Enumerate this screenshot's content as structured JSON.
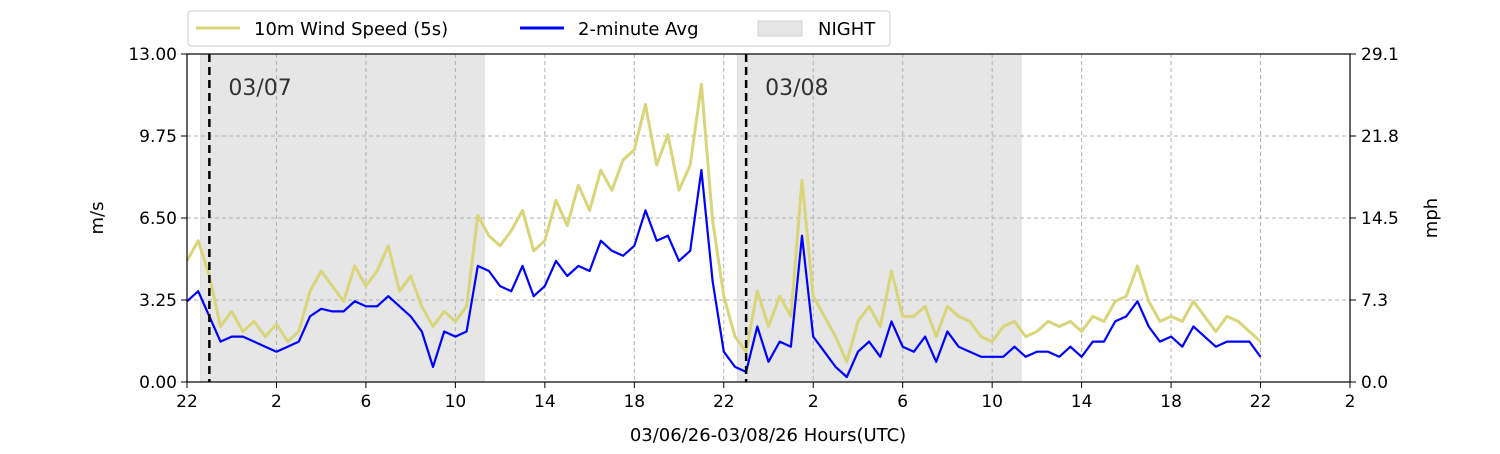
{
  "chart_data": {
    "type": "line",
    "xlabel": "03/06/26-03/08/26  Hours(UTC)",
    "ylabel_left": "m/s",
    "ylabel_right": "mph",
    "ylim": [
      0,
      13
    ],
    "yticks_left": [
      "0.00",
      "3.25",
      "6.50",
      "9.75",
      "13.00"
    ],
    "yticks_right": [
      "0.0",
      "7.3",
      "14.5",
      "21.8",
      "29.1"
    ],
    "xlim_hours": [
      0,
      52
    ],
    "xticks": [
      "22",
      "2",
      "6",
      "10",
      "14",
      "18",
      "22",
      "2",
      "6",
      "10",
      "14",
      "18",
      "22",
      "2"
    ],
    "grid": true,
    "legend_position": "top-left",
    "legend": {
      "wind_speed": "10m Wind Speed (5s)",
      "avg": "2-minute Avg",
      "night": "NIGHT"
    },
    "colors": {
      "wind_speed": "#d8d57a",
      "avg": "#0000ff",
      "night": "#e6e6e6",
      "grid": "#b0b0b0",
      "day_divider": "#000000"
    },
    "night_periods_hours": [
      [
        0.6,
        13.3
      ],
      [
        24.6,
        37.3
      ]
    ],
    "day_markers": [
      {
        "hour": 1.0,
        "label": "03/07"
      },
      {
        "hour": 25.0,
        "label": "03/08"
      }
    ],
    "series": [
      {
        "name": "10m Wind Speed (5s)",
        "x_hours": [
          0,
          0.5,
          1.0,
          1.5,
          2.0,
          2.5,
          3.0,
          3.5,
          4.0,
          4.5,
          5.0,
          5.5,
          6.0,
          6.5,
          7.0,
          7.5,
          8.0,
          8.5,
          9.0,
          9.5,
          10.0,
          10.5,
          11.0,
          11.5,
          12.0,
          12.5,
          13.0,
          13.5,
          14.0,
          14.5,
          15.0,
          15.5,
          16.0,
          16.5,
          17.0,
          17.5,
          18.0,
          18.5,
          19.0,
          19.5,
          20.0,
          20.5,
          21.0,
          21.5,
          22.0,
          22.5,
          23.0,
          23.5,
          24.0,
          24.5,
          25.0,
          25.5,
          26.0,
          26.5,
          27.0,
          27.5,
          28.0,
          28.5,
          29.0,
          29.5,
          30.0,
          30.5,
          31.0,
          31.5,
          32.0,
          32.5,
          33.0,
          33.5,
          34.0,
          34.5,
          35.0,
          35.5,
          36.0,
          36.5,
          37.0,
          37.5,
          38.0,
          38.5,
          39.0,
          39.5,
          40.0,
          40.5,
          41.0,
          41.5,
          42.0,
          42.5,
          43.0,
          43.5,
          44.0,
          44.5,
          45.0,
          45.5,
          46.0,
          46.5,
          47.0,
          47.5,
          48.0
        ],
        "values": [
          4.8,
          5.6,
          4.2,
          2.2,
          2.8,
          2.0,
          2.4,
          1.8,
          2.3,
          1.6,
          2.0,
          3.6,
          4.4,
          3.8,
          3.2,
          4.6,
          3.8,
          4.4,
          5.4,
          3.6,
          4.2,
          3.0,
          2.2,
          2.8,
          2.4,
          3.0,
          6.6,
          5.8,
          5.4,
          6.0,
          6.8,
          5.2,
          5.6,
          7.2,
          6.2,
          7.8,
          6.8,
          8.4,
          7.6,
          8.8,
          9.2,
          11.0,
          8.6,
          9.8,
          7.6,
          8.6,
          11.8,
          6.4,
          3.4,
          1.8,
          1.2,
          3.6,
          2.2,
          3.4,
          2.6,
          8.0,
          3.4,
          2.6,
          1.8,
          0.8,
          2.4,
          3.0,
          2.2,
          4.4,
          2.6,
          2.6,
          3.0,
          1.8,
          3.0,
          2.6,
          2.4,
          1.8,
          1.6,
          2.2,
          2.4,
          1.8,
          2.0,
          2.4,
          2.2,
          2.4,
          2.0,
          2.6,
          2.4,
          3.2,
          3.4,
          4.6,
          3.2,
          2.4,
          2.6,
          2.4,
          3.2,
          2.6,
          2.0,
          2.6,
          2.4,
          2.0,
          1.6
        ]
      },
      {
        "name": "2-minute Avg",
        "x_hours": [
          0,
          0.5,
          1.0,
          1.5,
          2.0,
          2.5,
          3.0,
          3.5,
          4.0,
          4.5,
          5.0,
          5.5,
          6.0,
          6.5,
          7.0,
          7.5,
          8.0,
          8.5,
          9.0,
          9.5,
          10.0,
          10.5,
          11.0,
          11.5,
          12.0,
          12.5,
          13.0,
          13.5,
          14.0,
          14.5,
          15.0,
          15.5,
          16.0,
          16.5,
          17.0,
          17.5,
          18.0,
          18.5,
          19.0,
          19.5,
          20.0,
          20.5,
          21.0,
          21.5,
          22.0,
          22.5,
          23.0,
          23.5,
          24.0,
          24.5,
          25.0,
          25.5,
          26.0,
          26.5,
          27.0,
          27.5,
          28.0,
          28.5,
          29.0,
          29.5,
          30.0,
          30.5,
          31.0,
          31.5,
          32.0,
          32.5,
          33.0,
          33.5,
          34.0,
          34.5,
          35.0,
          35.5,
          36.0,
          36.5,
          37.0,
          37.5,
          38.0,
          38.5,
          39.0,
          39.5,
          40.0,
          40.5,
          41.0,
          41.5,
          42.0,
          42.5,
          43.0,
          43.5,
          44.0,
          44.5,
          45.0,
          45.5,
          46.0,
          46.5,
          47.0,
          47.5,
          48.0
        ],
        "values": [
          3.2,
          3.6,
          2.6,
          1.6,
          1.8,
          1.8,
          1.6,
          1.4,
          1.2,
          1.4,
          1.6,
          2.6,
          2.9,
          2.8,
          2.8,
          3.2,
          3.0,
          3.0,
          3.4,
          3.0,
          2.6,
          2.0,
          0.6,
          2.0,
          1.8,
          2.0,
          4.6,
          4.4,
          3.8,
          3.6,
          4.6,
          3.4,
          3.8,
          4.8,
          4.2,
          4.6,
          4.4,
          5.6,
          5.2,
          5.0,
          5.4,
          6.8,
          5.6,
          5.8,
          4.8,
          5.2,
          8.4,
          4.0,
          1.2,
          0.6,
          0.4,
          2.2,
          0.8,
          1.6,
          1.4,
          5.8,
          1.8,
          1.2,
          0.6,
          0.2,
          1.2,
          1.6,
          1.0,
          2.4,
          1.4,
          1.2,
          1.8,
          0.8,
          2.0,
          1.4,
          1.2,
          1.0,
          1.0,
          1.0,
          1.4,
          1.0,
          1.2,
          1.2,
          1.0,
          1.4,
          1.0,
          1.6,
          1.6,
          2.4,
          2.6,
          3.2,
          2.2,
          1.6,
          1.8,
          1.4,
          2.2,
          1.8,
          1.4,
          1.6,
          1.6,
          1.6,
          1.0
        ]
      }
    ]
  }
}
